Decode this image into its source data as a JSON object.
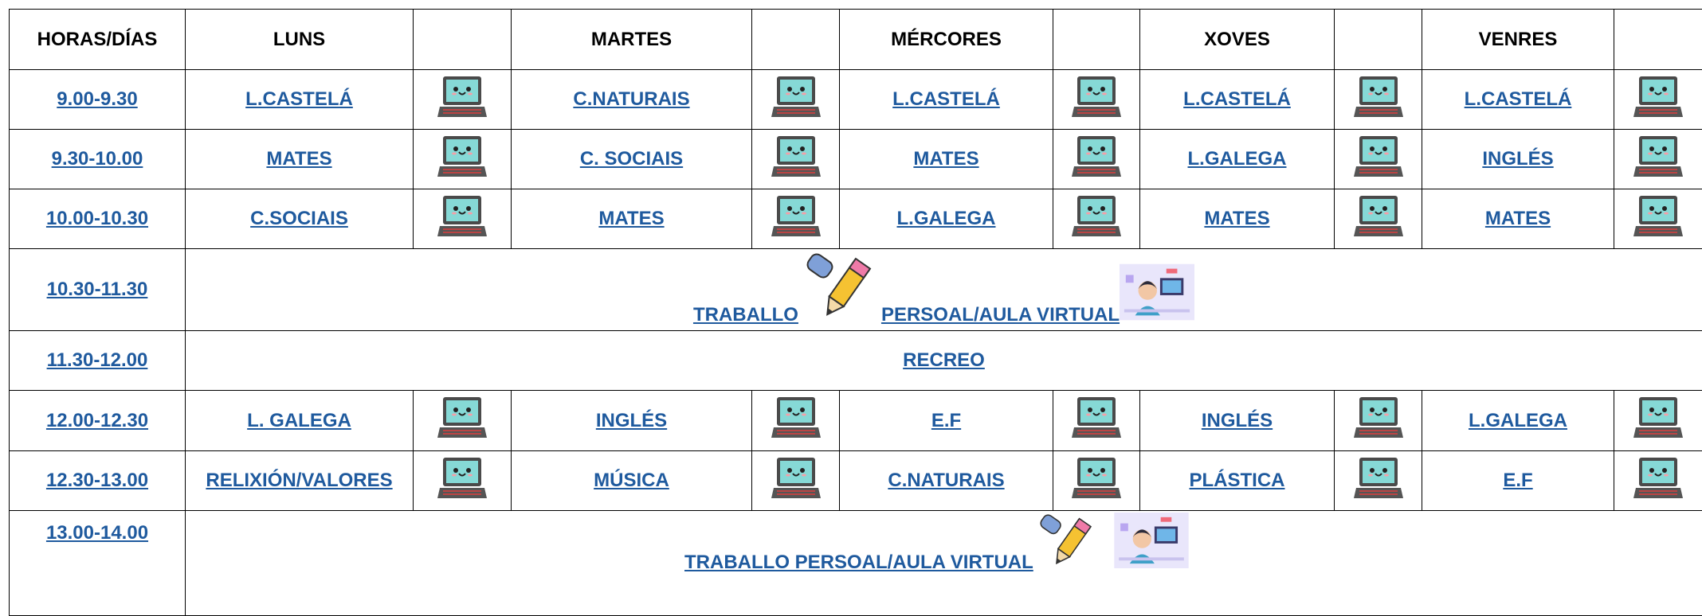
{
  "header": {
    "corner": "HORAS/DÍAS",
    "days": [
      "LUNS",
      "MARTES",
      "MÉRCORES",
      "XOVES",
      "VENRES"
    ]
  },
  "rows": [
    {
      "time": "9.00-9.30",
      "subjects": [
        "L.CASTELÁ",
        "C.NATURAIS",
        "L.CASTELÁ",
        "L.CASTELÁ",
        "L.CASTELÁ"
      ]
    },
    {
      "time": "9.30-10.00",
      "subjects": [
        "MATES",
        "C. SOCIAIS",
        "MATES",
        "L.GALEGA",
        "INGLÉS"
      ]
    },
    {
      "time": "10.00-10.30",
      "subjects": [
        "C.SOCIAIS",
        "MATES",
        "L.GALEGA",
        "MATES",
        "MATES"
      ]
    },
    {
      "time": "10.30-11.30",
      "activity": [
        "TRABALLO",
        "PERSOAL/AULA VIRTUAL"
      ]
    },
    {
      "time": "11.30-12.00",
      "span": "RECREO"
    },
    {
      "time": "12.00-12.30",
      "subjects": [
        "L. GALEGA",
        "INGLÉS",
        "E.F",
        "INGLÉS",
        "L.GALEGA"
      ]
    },
    {
      "time": "12.30-13.00",
      "subjects": [
        "RELIXIÓN/VALORES",
        "MÚSICA",
        "C.NATURAIS",
        "PLÁSTICA",
        "E.F"
      ]
    },
    {
      "time": "13.00-14.00",
      "activity": [
        "TRABALLO PERSOAL/AULA VIRTUAL"
      ]
    }
  ]
}
